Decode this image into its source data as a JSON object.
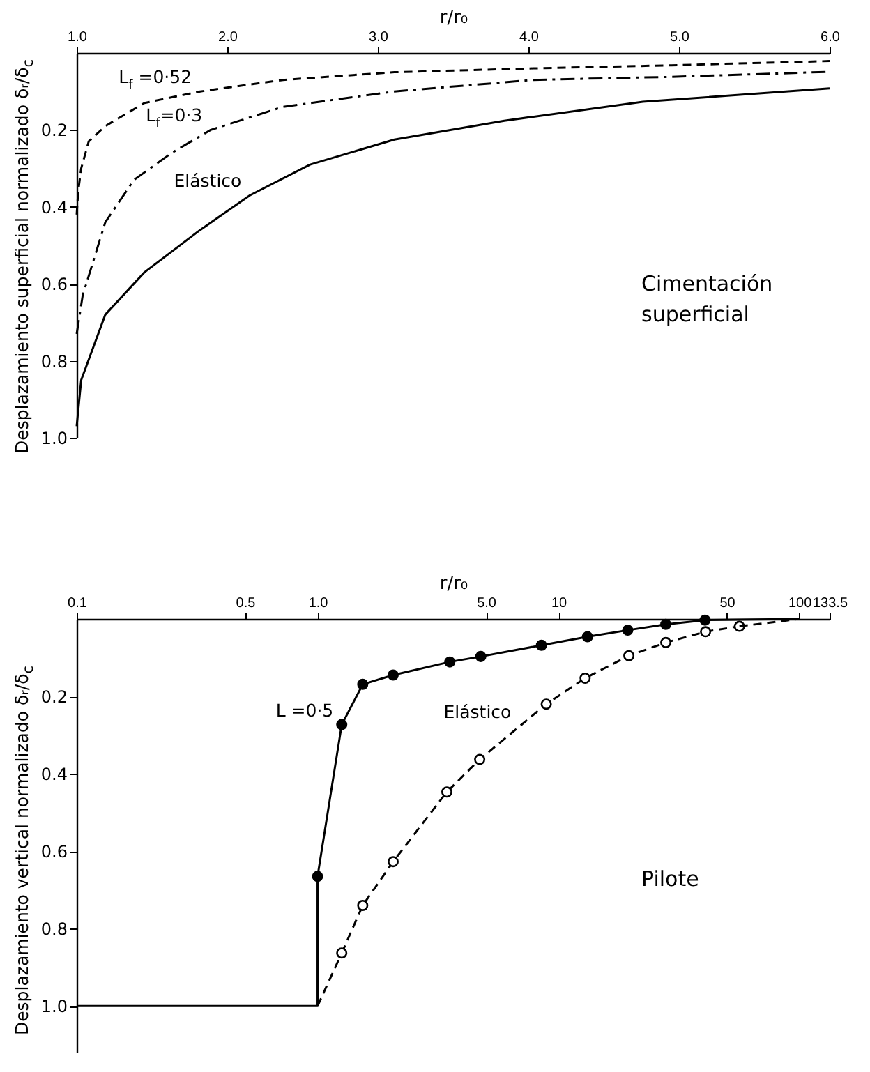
{
  "chart_data": [
    {
      "type": "line",
      "xlabel": "r/r₀",
      "ylabel": "Desplazamiento superficial normalizado δᵣ/δ$_{c}$",
      "xlim": [
        1,
        6
      ],
      "ylim": [
        1,
        0
      ],
      "xticks": [
        {
          "value": 1,
          "label": "1.0"
        },
        {
          "value": 2,
          "label": "2.0"
        },
        {
          "value": 3,
          "label": "3.0"
        },
        {
          "value": 4,
          "label": "4.0"
        },
        {
          "value": 5,
          "label": "5.0"
        },
        {
          "value": 6,
          "label": "6.0"
        }
      ],
      "yticks": [
        0.2,
        0.4,
        0.6,
        0.8,
        {
          "value": 1,
          "label": "1.0"
        }
      ],
      "series": [
        {
          "color": "#000000",
          "line_style": "dashed",
          "x": [
            1.0,
            1.01,
            1.03,
            1.08,
            1.19,
            1.45,
            1.82,
            2.37,
            3.11,
            4.03,
            4.95,
            6.0
          ],
          "values": [
            0.42,
            0.36,
            0.3,
            0.23,
            0.19,
            0.13,
            0.1,
            0.07,
            0.05,
            0.04,
            0.032,
            0.021
          ]
        },
        {
          "color": "#000000",
          "line_style": "dashdot",
          "x": [
            1.0,
            1.04,
            1.19,
            1.38,
            1.63,
            1.89,
            2.37,
            3.11,
            4.03,
            4.95,
            6.0
          ],
          "values": [
            0.73,
            0.63,
            0.44,
            0.33,
            0.26,
            0.2,
            0.14,
            0.1,
            0.07,
            0.062,
            0.049
          ]
        },
        {
          "color": "#000000",
          "line_style": "solid",
          "x": [
            1.0,
            1.03,
            1.19,
            1.45,
            1.82,
            2.15,
            2.55,
            3.11,
            3.84,
            4.76,
            6.0
          ],
          "values": [
            0.97,
            0.85,
            0.68,
            0.57,
            0.46,
            0.37,
            0.29,
            0.225,
            0.176,
            0.127,
            0.092
          ]
        }
      ],
      "annotations": [
        {
          "text": "L$_{f}$ =0·52",
          "x": 1.82,
          "y": 0.1
        },
        {
          "text": "L$_{f}$=0·3",
          "x": 1.89,
          "y": 0.2
        },
        {
          "text": "Elástico",
          "x": 2.15,
          "y": 0.37
        },
        "Cimentación superficial"
      ]
    },
    {
      "type": "line",
      "log": "x",
      "xlabel": "r/r₀",
      "ylabel": "Desplazamiento vertical normalizado δᵣ/δ$_{c}$",
      "xlim": [
        0.1,
        133.5
      ],
      "ylim": [
        1.12,
        0
      ],
      "xticks": [
        0.1,
        0.5,
        {
          "value": 1,
          "label": "1.0"
        },
        {
          "value": 5,
          "label": "5.0"
        },
        10,
        50,
        100,
        133.5
      ],
      "yticks": [
        0.2,
        0.4,
        0.6,
        0.8,
        {
          "value": 1,
          "label": "1.0"
        }
      ],
      "series": [
        {
          "color": "#000000",
          "line_style": "solid",
          "x": [
            0.1,
            1.0,
            1.0
          ],
          "values": [
            1.0,
            1.0,
            0.665
          ]
        },
        {
          "color": "#000000",
          "line_style": "solid",
          "marker": "circle",
          "x": [
            1.0,
            1.26,
            1.54,
            2.06,
            3.54,
            4.76,
            8.5,
            13.2,
            19.4,
            27.9,
            40.6
          ],
          "values": [
            0.665,
            0.273,
            0.169,
            0.145,
            0.111,
            0.097,
            0.068,
            0.046,
            0.029,
            0.014,
            0.003
          ]
        },
        {
          "color": "#000000",
          "line_style": "solid",
          "x": [
            40.6,
            100
          ],
          "values": [
            0.003,
            0.0
          ]
        },
        {
          "color": "#000000",
          "line_style": "dashed",
          "x": [
            1.0,
            1.26
          ],
          "values": [
            1.0,
            0.863
          ]
        },
        {
          "color": "#000000",
          "line_style": "dashed",
          "marker": "circle",
          "x": [
            1.26,
            1.54,
            2.06,
            3.44,
            4.71,
            8.9,
            12.9,
            19.6,
            27.9,
            40.8,
            56.4
          ],
          "values": [
            0.863,
            0.74,
            0.627,
            0.447,
            0.363,
            0.22,
            0.153,
            0.095,
            0.061,
            0.033,
            0.019
          ]
        },
        {
          "color": "#000000",
          "line_style": "dashed",
          "x": [
            56.4,
            100
          ],
          "values": [
            0.019,
            0.0
          ]
        }
      ],
      "annotations": [
        {
          "text": "L =0·5",
          "x": 1.26,
          "y": 0.273
        },
        {
          "text": "Elástico",
          "x": 6.9,
          "y": 0.277
        },
        "Pilote"
      ]
    }
  ]
}
